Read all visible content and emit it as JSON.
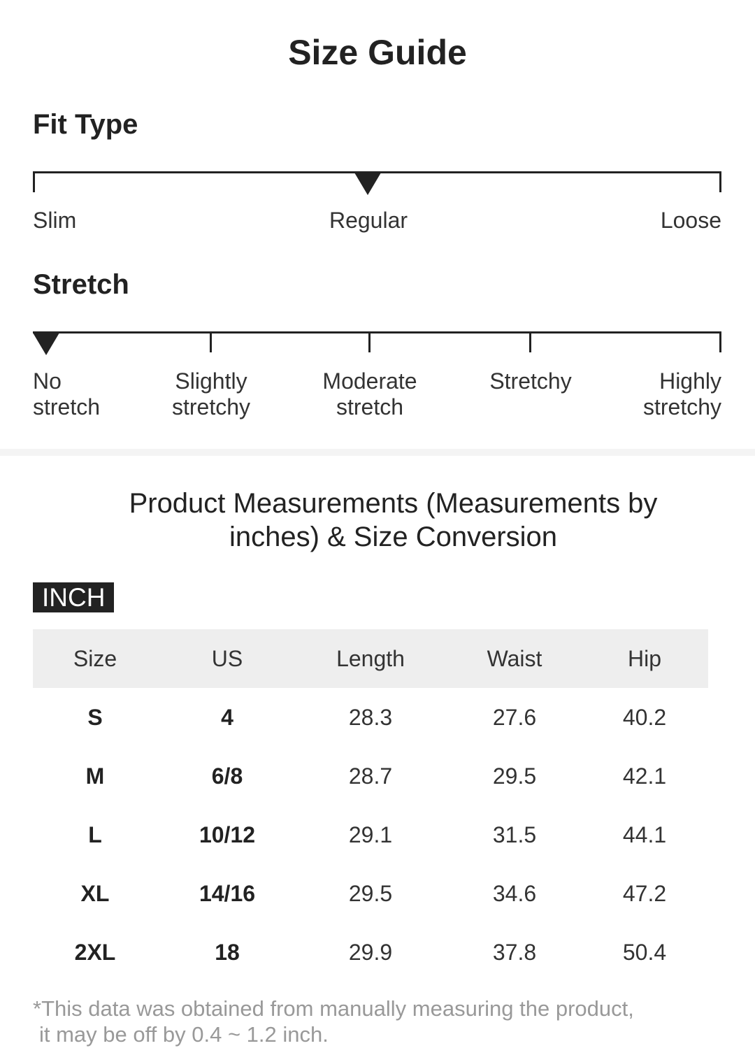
{
  "page": {
    "title": "Size Guide"
  },
  "fit": {
    "heading": "Fit Type",
    "labels": [
      "Slim",
      "Regular",
      "Loose"
    ],
    "selected": "Regular"
  },
  "stretch": {
    "heading": "Stretch",
    "labels": [
      {
        "line1": "No",
        "line2": "stretch"
      },
      {
        "line1": "Slightly",
        "line2": "stretchy"
      },
      {
        "line1": "Moderate",
        "line2": "stretch"
      },
      {
        "line1": "Stretchy",
        "line2": ""
      },
      {
        "line1": "Highly",
        "line2": "stretchy"
      }
    ],
    "selected": "No stretch"
  },
  "measurements": {
    "title": "Product Measurements (Measurements by inches) & Size Conversion",
    "unit": "INCH",
    "columns": [
      "Size",
      "US",
      "Length",
      "Waist",
      "Hip"
    ],
    "rows": [
      [
        "S",
        "4",
        "28.3",
        "27.6",
        "40.2"
      ],
      [
        "M",
        "6/8",
        "28.7",
        "29.5",
        "42.1"
      ],
      [
        "L",
        "10/12",
        "29.1",
        "31.5",
        "44.1"
      ],
      [
        "XL",
        "14/16",
        "29.5",
        "34.6",
        "47.2"
      ],
      [
        "2XL",
        "18",
        "29.9",
        "37.8",
        "50.4"
      ]
    ],
    "footnote_line1": "*This data was obtained from manually measuring the product,",
    "footnote_line2": "it may be off by 0.4 ~ 1.2 inch."
  }
}
